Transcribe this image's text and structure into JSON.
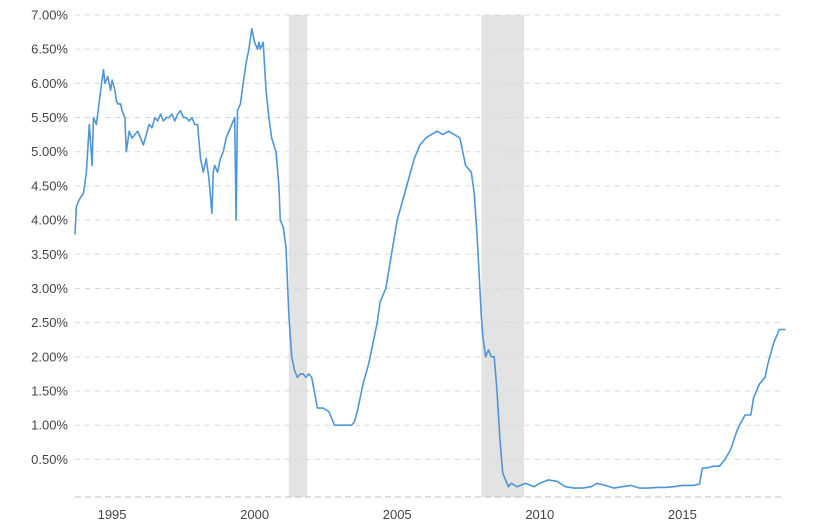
{
  "chart_data": {
    "type": "line",
    "title": "",
    "xlabel": "",
    "ylabel": "",
    "x_ticks": [
      "1995",
      "2000",
      "2005",
      "2010",
      "2015"
    ],
    "y_ticks": [
      "0.50%",
      "1.00%",
      "1.50%",
      "2.00%",
      "2.50%",
      "3.00%",
      "3.50%",
      "4.00%",
      "4.50%",
      "5.00%",
      "5.50%",
      "6.00%",
      "6.50%",
      "7.00%"
    ],
    "xlim": [
      1993.7,
      2018.6
    ],
    "ylim": [
      -0.05,
      7.0
    ],
    "grid": true,
    "legend": "none",
    "recessions": [
      [
        2001.2,
        2001.85
      ],
      [
        2007.95,
        2009.45
      ]
    ],
    "series": [
      {
        "x": [
          1993.7,
          1993.75,
          1993.85,
          1994.0,
          1994.1,
          1994.2,
          1994.3,
          1994.35,
          1994.45,
          1994.6,
          1994.7,
          1994.75,
          1994.85,
          1994.95,
          1995.0,
          1995.1,
          1995.15,
          1995.2,
          1995.3,
          1995.35,
          1995.45,
          1995.5,
          1995.6,
          1995.7,
          1995.8,
          1995.9,
          1996.0,
          1996.1,
          1996.2,
          1996.3,
          1996.4,
          1996.5,
          1996.6,
          1996.7,
          1996.8,
          1996.9,
          1997.0,
          1997.1,
          1997.2,
          1997.3,
          1997.4,
          1997.5,
          1997.6,
          1997.7,
          1997.8,
          1997.9,
          1998.0,
          1998.1,
          1998.2,
          1998.3,
          1998.4,
          1998.5,
          1998.55,
          1998.6,
          1998.7,
          1998.8,
          1998.9,
          1999.0,
          1999.1,
          1999.2,
          1999.3,
          1999.35,
          1999.4,
          1999.5,
          1999.6,
          1999.7,
          1999.8,
          1999.9,
          2000.0,
          2000.1,
          2000.15,
          2000.2,
          2000.3,
          2000.4,
          2000.5,
          2000.6,
          2000.75,
          2000.85,
          2000.9,
          2001.0,
          2001.1,
          2001.2,
          2001.3,
          2001.4,
          2001.5,
          2001.6,
          2001.7,
          2001.8,
          2001.9,
          2002.0,
          2002.2,
          2002.4,
          2002.6,
          2002.8,
          2002.9,
          2003.0,
          2003.2,
          2003.4,
          2003.5,
          2003.6,
          2003.8,
          2004.0,
          2004.2,
          2004.3,
          2004.4,
          2004.6,
          2004.8,
          2005.0,
          2005.2,
          2005.4,
          2005.6,
          2005.8,
          2006.0,
          2006.2,
          2006.4,
          2006.6,
          2006.8,
          2007.0,
          2007.2,
          2007.4,
          2007.6,
          2007.7,
          2007.8,
          2007.9,
          2007.95,
          2008.0,
          2008.1,
          2008.2,
          2008.3,
          2008.4,
          2008.5,
          2008.6,
          2008.7,
          2008.8,
          2008.9,
          2009.0,
          2009.2,
          2009.5,
          2009.8,
          2010.0,
          2010.3,
          2010.6,
          2010.9,
          2011.2,
          2011.5,
          2011.8,
          2012.0,
          2012.3,
          2012.6,
          2012.9,
          2013.2,
          2013.5,
          2013.8,
          2014.1,
          2014.4,
          2014.7,
          2015.0,
          2015.2,
          2015.4,
          2015.5,
          2015.6,
          2015.7,
          2015.9,
          2016.1,
          2016.3,
          2016.5,
          2016.7,
          2016.9,
          2017.0,
          2017.2,
          2017.4,
          2017.5,
          2017.7,
          2017.9,
          2018.0,
          2018.2,
          2018.4,
          2018.6
        ],
        "y": [
          3.8,
          4.2,
          4.3,
          4.4,
          4.7,
          5.4,
          4.8,
          5.5,
          5.4,
          5.9,
          6.2,
          6.0,
          6.1,
          5.9,
          6.05,
          5.9,
          5.75,
          5.7,
          5.7,
          5.6,
          5.5,
          5.0,
          5.3,
          5.2,
          5.25,
          5.3,
          5.2,
          5.1,
          5.25,
          5.4,
          5.35,
          5.5,
          5.45,
          5.55,
          5.45,
          5.5,
          5.5,
          5.55,
          5.45,
          5.55,
          5.6,
          5.5,
          5.5,
          5.45,
          5.5,
          5.4,
          5.4,
          4.9,
          4.7,
          4.9,
          4.6,
          4.1,
          4.7,
          4.8,
          4.7,
          4.9,
          5.0,
          5.2,
          5.3,
          5.4,
          5.5,
          4.0,
          5.6,
          5.7,
          6.0,
          6.3,
          6.5,
          6.8,
          6.6,
          6.5,
          6.6,
          6.5,
          6.6,
          5.9,
          5.5,
          5.2,
          5.0,
          4.5,
          4.0,
          3.9,
          3.6,
          2.6,
          2.0,
          1.8,
          1.7,
          1.75,
          1.75,
          1.7,
          1.75,
          1.7,
          1.25,
          1.25,
          1.2,
          1.0,
          1.0,
          1.0,
          1.0,
          1.0,
          1.05,
          1.2,
          1.6,
          1.9,
          2.3,
          2.5,
          2.8,
          3.0,
          3.5,
          4.0,
          4.3,
          4.6,
          4.9,
          5.1,
          5.2,
          5.25,
          5.3,
          5.25,
          5.3,
          5.25,
          5.2,
          4.8,
          4.7,
          4.4,
          3.8,
          3.0,
          2.6,
          2.3,
          2.0,
          2.1,
          2.0,
          2.0,
          1.5,
          0.8,
          0.3,
          0.2,
          0.1,
          0.15,
          0.1,
          0.15,
          0.1,
          0.15,
          0.2,
          0.18,
          0.1,
          0.08,
          0.08,
          0.1,
          0.15,
          0.12,
          0.08,
          0.1,
          0.12,
          0.08,
          0.08,
          0.09,
          0.09,
          0.1,
          0.12,
          0.12,
          0.12,
          0.13,
          0.14,
          0.37,
          0.38,
          0.4,
          0.4,
          0.5,
          0.65,
          0.9,
          1.0,
          1.15,
          1.15,
          1.4,
          1.6,
          1.7,
          1.9,
          2.2,
          2.4,
          2.4
        ]
      }
    ]
  },
  "colors": {
    "line": "#4f96d6",
    "recession": "#e3e3e3",
    "grid": "#d7d7d7",
    "axis": "#bdbdbd",
    "tick_text": "#444444"
  }
}
